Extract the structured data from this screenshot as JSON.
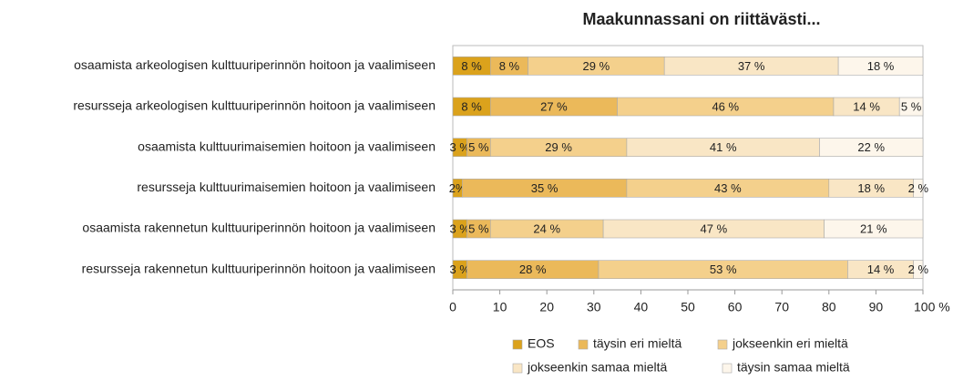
{
  "chart_data": {
    "type": "stacked-bar-horizontal",
    "title": "Maakunnassani on riittävästi...",
    "categories": [
      "osaamista arkeologisen kulttuuriperinnön hoitoon ja vaalimiseen",
      "resursseja arkeologisen kulttuuriperinnön hoitoon ja vaalimiseen",
      "osaamista kulttuurimaisemien hoitoon ja vaalimiseen",
      "resursseja kulttuurimaisemien hoitoon ja vaalimiseen",
      "osaamista rakennetun kulttuuriperinnön hoitoon ja vaalimiseen",
      "resursseja rakennetun kulttuuriperinnön hoitoon ja vaalimiseen"
    ],
    "series": [
      {
        "name": "EOS",
        "color": "#dba21c",
        "values": [
          8,
          8,
          3,
          2,
          3,
          3
        ],
        "value_labels": [
          "8 %",
          "8 %",
          "3 %",
          "2%",
          "3 %",
          "3 %"
        ]
      },
      {
        "name": "täysin eri mieltä",
        "color": "#ebb95a",
        "values": [
          8,
          27,
          5,
          35,
          5,
          28
        ],
        "value_labels": [
          "8 %",
          "27 %",
          "5 %",
          "35 %",
          "5 %",
          "28 %"
        ]
      },
      {
        "name": "jokseenkin eri mieltä",
        "color": "#f4d08c",
        "values": [
          29,
          46,
          29,
          43,
          24,
          53
        ],
        "value_labels": [
          "29 %",
          "46 %",
          "29 %",
          "43 %",
          "24 %",
          "53 %"
        ]
      },
      {
        "name": "jokseenkin samaa mieltä",
        "color": "#f9e6c5",
        "values": [
          37,
          14,
          41,
          18,
          47,
          14
        ],
        "value_labels": [
          "37 %",
          "14 %",
          "41 %",
          "18 %",
          "47 %",
          "14 %"
        ]
      },
      {
        "name": "täysin samaa mieltä",
        "color": "#fdf6eb",
        "values": [
          18,
          5,
          22,
          2,
          21,
          2
        ],
        "value_labels": [
          "18 %",
          "5 %",
          "22 %",
          "2 %",
          "21 %",
          "2 %"
        ]
      }
    ],
    "xlim": [
      0,
      100
    ],
    "xticks": [
      0,
      10,
      20,
      30,
      40,
      50,
      60,
      70,
      80,
      90,
      {
        "value": 100,
        "label": "100 %"
      }
    ],
    "grid": false,
    "legend": "bottom"
  }
}
